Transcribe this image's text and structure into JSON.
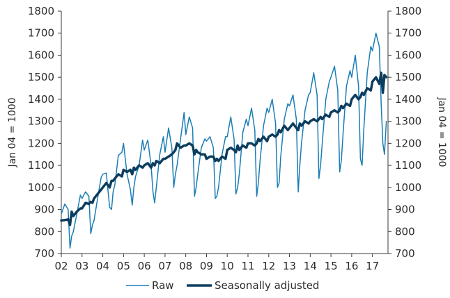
{
  "chart_data": {
    "type": "line",
    "xlabel": "",
    "ylabel_left": "Jan 04 = 1000",
    "ylabel_right": "Jan 04 = 1000",
    "ylim": [
      700,
      1800
    ],
    "xlim": [
      2002,
      2017.75
    ],
    "y_ticks": [
      700,
      800,
      900,
      1000,
      1100,
      1200,
      1300,
      1400,
      1500,
      1600,
      1700,
      1800
    ],
    "x_tick_labels": [
      "02",
      "03",
      "04",
      "05",
      "06",
      "07",
      "08",
      "09",
      "10",
      "11",
      "12",
      "13",
      "14",
      "15",
      "16",
      "17"
    ],
    "x_tick_values": [
      2002,
      2003,
      2004,
      2005,
      2006,
      2007,
      2008,
      2009,
      2010,
      2011,
      2012,
      2013,
      2014,
      2015,
      2016,
      2017
    ],
    "grid": false,
    "legend_position": "bottom",
    "series": [
      {
        "name": "Raw",
        "color": "#1a7db5",
        "width": 1.5,
        "x": [
          2002.0,
          2002.17,
          2002.33,
          2002.42,
          2002.5,
          2002.58,
          2002.75,
          2002.92,
          2003.0,
          2003.17,
          2003.33,
          2003.42,
          2003.5,
          2003.58,
          2003.75,
          2003.92,
          2004.0,
          2004.17,
          2004.33,
          2004.42,
          2004.5,
          2004.58,
          2004.75,
          2004.92,
          2005.0,
          2005.17,
          2005.33,
          2005.42,
          2005.5,
          2005.58,
          2005.75,
          2005.92,
          2006.0,
          2006.17,
          2006.33,
          2006.42,
          2006.5,
          2006.58,
          2006.75,
          2006.92,
          2007.0,
          2007.17,
          2007.33,
          2007.42,
          2007.5,
          2007.58,
          2007.75,
          2007.92,
          2008.0,
          2008.17,
          2008.33,
          2008.42,
          2008.5,
          2008.58,
          2008.75,
          2008.92,
          2009.0,
          2009.17,
          2009.33,
          2009.42,
          2009.5,
          2009.58,
          2009.75,
          2009.92,
          2010.0,
          2010.17,
          2010.33,
          2010.42,
          2010.5,
          2010.58,
          2010.75,
          2010.92,
          2011.0,
          2011.17,
          2011.33,
          2011.42,
          2011.5,
          2011.58,
          2011.75,
          2011.92,
          2012.0,
          2012.17,
          2012.33,
          2012.42,
          2012.5,
          2012.58,
          2012.75,
          2012.92,
          2013.0,
          2013.17,
          2013.33,
          2013.42,
          2013.5,
          2013.58,
          2013.75,
          2013.92,
          2014.0,
          2014.17,
          2014.33,
          2014.42,
          2014.5,
          2014.58,
          2014.75,
          2014.92,
          2015.0,
          2015.17,
          2015.33,
          2015.42,
          2015.5,
          2015.58,
          2015.75,
          2015.92,
          2016.0,
          2016.17,
          2016.33,
          2016.42,
          2016.5,
          2016.58,
          2016.75,
          2016.92,
          2017.0,
          2017.17,
          2017.33,
          2017.42,
          2017.5,
          2017.58,
          2017.67
        ],
        "y": [
          880,
          925,
          900,
          725,
          780,
          800,
          880,
          965,
          950,
          980,
          960,
          790,
          830,
          850,
          950,
          1045,
          1060,
          1065,
          910,
          900,
          980,
          1010,
          1145,
          1160,
          1200,
          1060,
          990,
          920,
          1000,
          1050,
          1100,
          1215,
          1170,
          1215,
          1100,
          980,
          930,
          1000,
          1150,
          1230,
          1160,
          1270,
          1180,
          1000,
          1060,
          1100,
          1220,
          1340,
          1240,
          1320,
          1270,
          960,
          1000,
          1060,
          1180,
          1220,
          1210,
          1230,
          1180,
          950,
          960,
          1000,
          1150,
          1230,
          1230,
          1320,
          1220,
          970,
          1000,
          1060,
          1250,
          1310,
          1280,
          1360,
          1260,
          960,
          1020,
          1120,
          1280,
          1360,
          1340,
          1400,
          1290,
          1000,
          1020,
          1140,
          1310,
          1380,
          1370,
          1420,
          1310,
          980,
          1100,
          1200,
          1350,
          1420,
          1430,
          1520,
          1420,
          1040,
          1100,
          1200,
          1400,
          1480,
          1500,
          1550,
          1440,
          1070,
          1120,
          1240,
          1460,
          1530,
          1500,
          1600,
          1460,
          1130,
          1100,
          1260,
          1520,
          1640,
          1620,
          1700,
          1640,
          1380,
          1200,
          1150,
          1300
        ]
      },
      {
        "name": "Seasonally adjusted",
        "color": "#0d3d5e",
        "width": 3.5,
        "x": [
          2002.0,
          2002.17,
          2002.33,
          2002.42,
          2002.5,
          2002.58,
          2002.75,
          2002.92,
          2003.0,
          2003.17,
          2003.33,
          2003.42,
          2003.5,
          2003.58,
          2003.75,
          2003.92,
          2004.0,
          2004.17,
          2004.33,
          2004.42,
          2004.5,
          2004.58,
          2004.75,
          2004.92,
          2005.0,
          2005.17,
          2005.33,
          2005.42,
          2005.5,
          2005.58,
          2005.75,
          2005.92,
          2006.0,
          2006.17,
          2006.33,
          2006.42,
          2006.5,
          2006.58,
          2006.75,
          2006.92,
          2007.0,
          2007.17,
          2007.33,
          2007.42,
          2007.5,
          2007.58,
          2007.75,
          2007.92,
          2008.0,
          2008.17,
          2008.33,
          2008.42,
          2008.5,
          2008.58,
          2008.75,
          2008.92,
          2009.0,
          2009.17,
          2009.33,
          2009.42,
          2009.5,
          2009.58,
          2009.75,
          2009.92,
          2010.0,
          2010.17,
          2010.33,
          2010.42,
          2010.5,
          2010.58,
          2010.75,
          2010.92,
          2011.0,
          2011.17,
          2011.33,
          2011.42,
          2011.5,
          2011.58,
          2011.75,
          2011.92,
          2012.0,
          2012.17,
          2012.33,
          2012.42,
          2012.5,
          2012.58,
          2012.75,
          2012.92,
          2013.0,
          2013.17,
          2013.33,
          2013.42,
          2013.5,
          2013.58,
          2013.75,
          2013.92,
          2014.0,
          2014.17,
          2014.33,
          2014.42,
          2014.5,
          2014.58,
          2014.75,
          2014.92,
          2015.0,
          2015.17,
          2015.33,
          2015.42,
          2015.5,
          2015.58,
          2015.75,
          2015.92,
          2016.0,
          2016.17,
          2016.33,
          2016.42,
          2016.5,
          2016.58,
          2016.75,
          2016.92,
          2017.0,
          2017.17,
          2017.33,
          2017.42,
          2017.5,
          2017.58,
          2017.67
        ],
        "y": [
          850,
          852,
          855,
          830,
          890,
          870,
          890,
          905,
          905,
          930,
          925,
          935,
          930,
          950,
          970,
          990,
          1000,
          1020,
          1000,
          1030,
          1030,
          1040,
          1060,
          1050,
          1080,
          1070,
          1080,
          1060,
          1090,
          1080,
          1100,
          1090,
          1100,
          1110,
          1090,
          1110,
          1100,
          1120,
          1110,
          1130,
          1130,
          1140,
          1150,
          1160,
          1170,
          1200,
          1180,
          1190,
          1190,
          1200,
          1190,
          1150,
          1170,
          1160,
          1150,
          1150,
          1130,
          1140,
          1140,
          1120,
          1130,
          1120,
          1140,
          1130,
          1170,
          1180,
          1170,
          1160,
          1190,
          1170,
          1190,
          1180,
          1200,
          1200,
          1190,
          1200,
          1220,
          1210,
          1230,
          1210,
          1230,
          1240,
          1230,
          1240,
          1260,
          1250,
          1280,
          1260,
          1270,
          1290,
          1270,
          1260,
          1290,
          1280,
          1300,
          1290,
          1300,
          1310,
          1300,
          1310,
          1320,
          1310,
          1330,
          1320,
          1340,
          1350,
          1340,
          1350,
          1370,
          1360,
          1380,
          1370,
          1400,
          1420,
          1400,
          1410,
          1430,
          1420,
          1450,
          1440,
          1480,
          1500,
          1470,
          1520,
          1430,
          1510,
          1500
        ]
      }
    ]
  }
}
